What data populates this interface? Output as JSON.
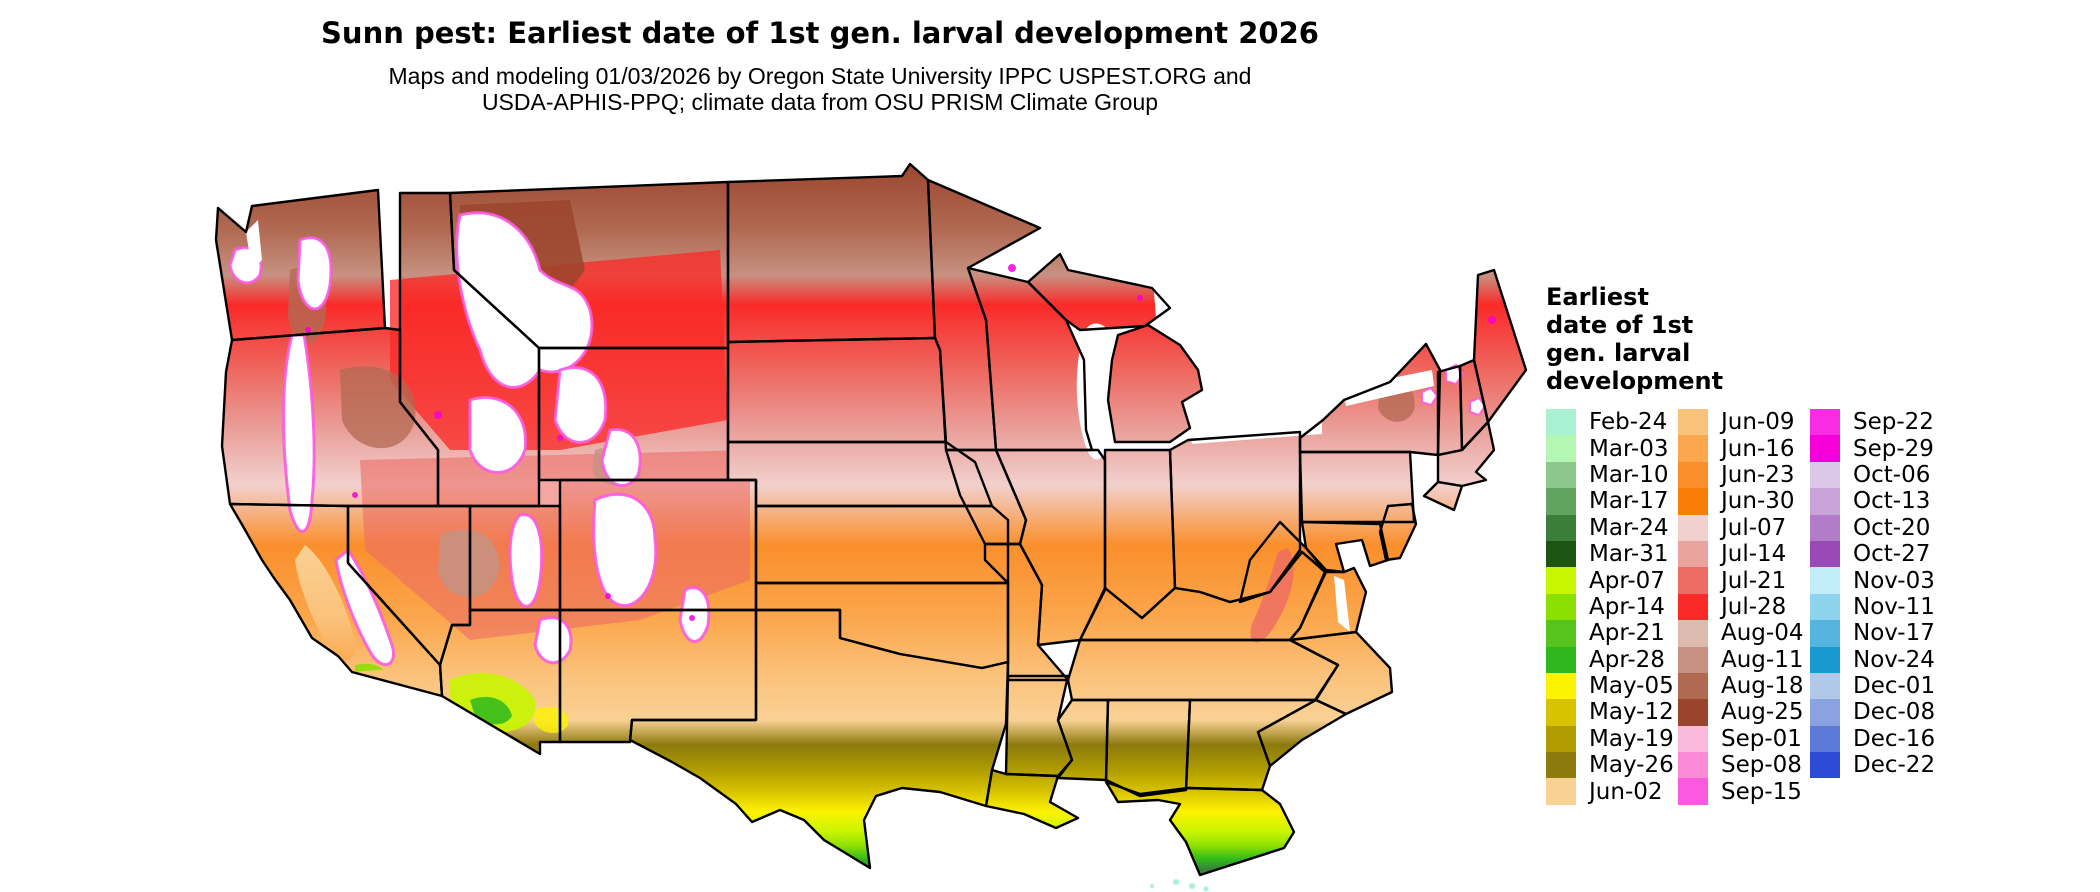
{
  "header": {
    "title": "Sunn pest: Earliest date of 1st gen. larval development 2026",
    "subtitle_line1": "Maps and modeling 01/03/2026 by Oregon State University IPPC USPEST.ORG and",
    "subtitle_line2": "USDA-APHIS-PPQ; climate data from OSU PRISM Climate Group"
  },
  "legend": {
    "title_lines": [
      "Earliest",
      "date of 1st",
      "gen. larval",
      "development"
    ],
    "columns": [
      {
        "entries": [
          {
            "label": "Feb-24",
            "color": "#a8f2d2"
          },
          {
            "label": "Mar-03",
            "color": "#b4f7b4"
          },
          {
            "label": "Mar-10",
            "color": "#8cc88c"
          },
          {
            "label": "Mar-17",
            "color": "#62a362"
          },
          {
            "label": "Mar-24",
            "color": "#3b7d3b"
          },
          {
            "label": "Mar-31",
            "color": "#1e5413"
          },
          {
            "label": "Apr-07",
            "color": "#c8f500"
          },
          {
            "label": "Apr-14",
            "color": "#8ce000"
          },
          {
            "label": "Apr-21",
            "color": "#57c41d"
          },
          {
            "label": "Apr-28",
            "color": "#2eb81d"
          },
          {
            "label": "May-05",
            "color": "#fdf200"
          },
          {
            "label": "May-12",
            "color": "#d8c300"
          },
          {
            "label": "May-19",
            "color": "#b09c00"
          },
          {
            "label": "May-26",
            "color": "#8c7a0e"
          },
          {
            "label": "Jun-02",
            "color": "#f9d195"
          }
        ]
      },
      {
        "entries": [
          {
            "label": "Jun-09",
            "color": "#fbc27b"
          },
          {
            "label": "Jun-16",
            "color": "#fba74d"
          },
          {
            "label": "Jun-23",
            "color": "#fa8f2c"
          },
          {
            "label": "Jun-30",
            "color": "#f97d07"
          },
          {
            "label": "Jul-07",
            "color": "#f2d0cd"
          },
          {
            "label": "Jul-14",
            "color": "#eaa49f"
          },
          {
            "label": "Jul-21",
            "color": "#ed6c64"
          },
          {
            "label": "Jul-28",
            "color": "#fa2a28"
          },
          {
            "label": "Aug-04",
            "color": "#dcbaae"
          },
          {
            "label": "Aug-11",
            "color": "#c79181"
          },
          {
            "label": "Aug-18",
            "color": "#b16a52"
          },
          {
            "label": "Aug-25",
            "color": "#9b442d"
          },
          {
            "label": "Sep-01",
            "color": "#fbb9dc"
          },
          {
            "label": "Sep-08",
            "color": "#fb8ad9"
          },
          {
            "label": "Sep-15",
            "color": "#fb5ae0"
          }
        ]
      },
      {
        "entries": [
          {
            "label": "Sep-22",
            "color": "#fa2ce3"
          },
          {
            "label": "Sep-29",
            "color": "#f500d8"
          },
          {
            "label": "Oct-06",
            "color": "#dbc8e8"
          },
          {
            "label": "Oct-13",
            "color": "#c8a3da"
          },
          {
            "label": "Oct-20",
            "color": "#b37cc8"
          },
          {
            "label": "Oct-27",
            "color": "#9a4ab4"
          },
          {
            "label": "Nov-03",
            "color": "#c2ecf8"
          },
          {
            "label": "Nov-11",
            "color": "#8ed3ed"
          },
          {
            "label": "Nov-17",
            "color": "#55b5df"
          },
          {
            "label": "Nov-24",
            "color": "#1a99d1"
          },
          {
            "label": "Dec-01",
            "color": "#b2c8e8"
          },
          {
            "label": "Dec-08",
            "color": "#8aa2e0"
          },
          {
            "label": "Dec-16",
            "color": "#5c7ad8"
          },
          {
            "label": "Dec-22",
            "color": "#2e4bd8"
          }
        ]
      }
    ]
  },
  "map": {
    "region_label": "Contiguous United States",
    "border_color": "#000000",
    "no_data_color": "#ffffff",
    "observed_bands_north_to_south": [
      {
        "area": "northern mountains, upper Great Lakes, Maine",
        "dates": "Aug-11 to Aug-25",
        "colors": [
          "#c79181",
          "#b16a52",
          "#9b442d"
        ]
      },
      {
        "area": "northern plains, Great Lakes south shores, New England",
        "dates": "Jul-21 to Jul-28",
        "colors": [
          "#ed6c64",
          "#fa2a28"
        ]
      },
      {
        "area": "central plains and Corn Belt",
        "dates": "Jul-07 to Jul-14",
        "colors": [
          "#f2d0cd",
          "#eaa49f"
        ]
      },
      {
        "area": "Missouri, Ohio Valley, Virginia",
        "dates": "Jun-16 to Jun-30",
        "colors": [
          "#fba74d",
          "#fa8f2c",
          "#f97d07"
        ]
      },
      {
        "area": "Oklahoma, Tennessee, Carolinas",
        "dates": "Jun-02 to Jun-09",
        "colors": [
          "#f9d195",
          "#fbc27b"
        ]
      },
      {
        "area": "Deep South and north Texas",
        "dates": "May-05 to May-26",
        "colors": [
          "#fdf200",
          "#d8c300",
          "#b09c00",
          "#8c7a0e"
        ]
      },
      {
        "area": "Gulf coast, south Texas, Florida",
        "dates": "Mar-10 to Apr-28",
        "colors": [
          "#8ce000",
          "#57c41d",
          "#2eb81d",
          "#3b7d3b",
          "#8cc88c"
        ]
      },
      {
        "area": "Florida Keys",
        "dates": "Feb-24",
        "colors": [
          "#a8f2d2"
        ]
      },
      {
        "area": "high western mountains",
        "dates": "not reached (white)",
        "colors": [
          "#ffffff"
        ]
      },
      {
        "area": "mountain fringes",
        "dates": "Sep-08 to Sep-29",
        "colors": [
          "#fb5ae0",
          "#f500d8"
        ]
      }
    ]
  }
}
